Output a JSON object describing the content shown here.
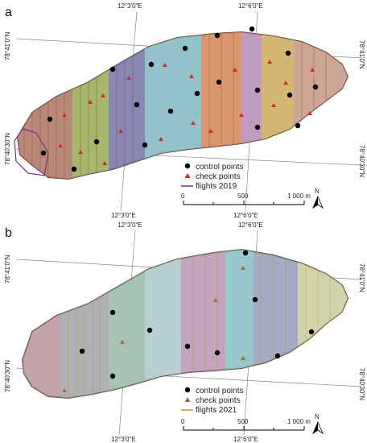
{
  "panels": [
    {
      "letter": "a",
      "top_coords": [
        "12°3'0\"E",
        "12°6'0\"E"
      ],
      "bottom_coords": [
        "12°3'0\"E",
        "12°6'0\"E"
      ],
      "left_coords": [
        "78°41'0\"N",
        "78°40'30\"N"
      ],
      "right_coords": [
        "78°41'0\"N",
        "78°40'30\"N"
      ],
      "legend": {
        "control_points": "control points",
        "check_points": "check points",
        "flights": "flights 2019"
      },
      "scalebar": {
        "ticks": [
          "0",
          "500",
          "1 000 m"
        ]
      },
      "north": "N",
      "colors": {
        "check_marker": "#d62728",
        "flight_line": "#7b2d8b"
      }
    },
    {
      "letter": "b",
      "top_coords": [
        "12°3'0\"E",
        "12°6'0\"E"
      ],
      "bottom_coords": [
        "12°3'0\"E",
        "12°6'0\"E"
      ],
      "left_coords": [
        "78°41'0\"N",
        "78°40'30\"N"
      ],
      "right_coords": [
        "78°41'0\"N",
        "78°40'30\"N"
      ],
      "legend": {
        "control_points": "control points",
        "check_points": "check points",
        "flights": "flights 2021"
      },
      "scalebar": {
        "ticks": [
          "0",
          "500",
          "1 000 m"
        ]
      },
      "north": "N",
      "colors": {
        "check_marker": "#a0684a",
        "flight_line": "#b8a000"
      }
    }
  ]
}
